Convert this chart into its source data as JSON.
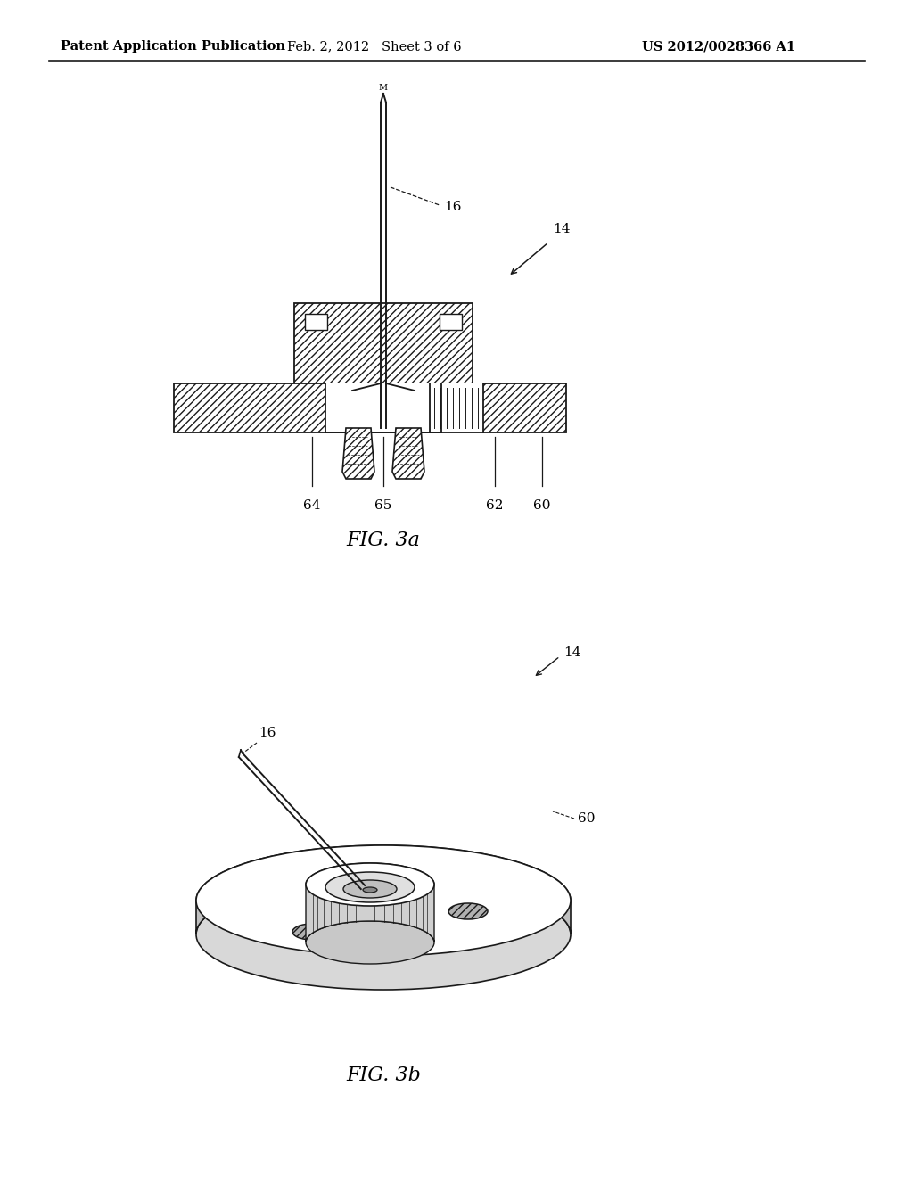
{
  "background_color": "#ffffff",
  "page_header": {
    "left": "Patent Application Publication",
    "center": "Feb. 2, 2012   Sheet 3 of 6",
    "right": "US 2012/0028366 A1"
  },
  "fig3a_label": "FIG. 3a",
  "fig3b_label": "FIG. 3b",
  "line_color": "#1a1a1a",
  "text_color": "#000000",
  "hatch_gray": "#888888",
  "light_gray": "#e8e8e8",
  "mid_gray": "#cccccc",
  "dark_gray": "#999999"
}
